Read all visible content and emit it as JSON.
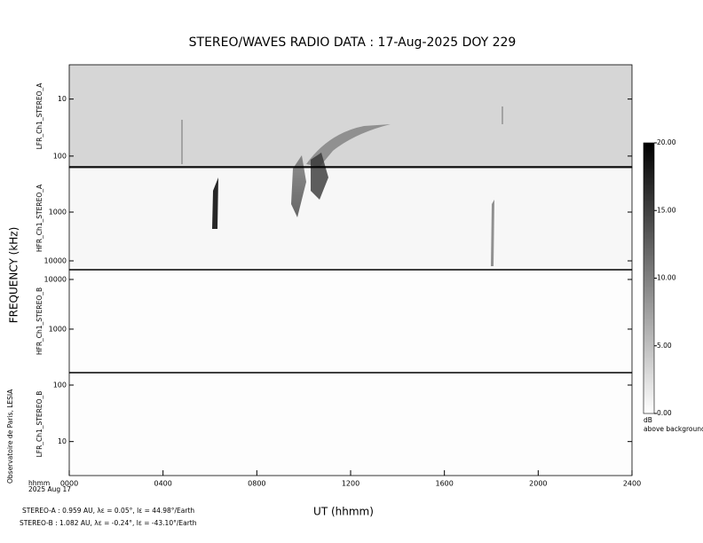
{
  "chart_data": {
    "type": "spectrogram",
    "title": "STEREO/WAVES  RADIO  DATA : 17-Aug-2025  DOY 229",
    "xlabel": "UT (hhmm)",
    "ylabel": "FREQUENCY (kHz)",
    "xlim": [
      0,
      24
    ],
    "xticks": [
      {
        "value": 0,
        "label": "0000"
      },
      {
        "value": 4,
        "label": "0400"
      },
      {
        "value": 8,
        "label": "0800"
      },
      {
        "value": 12,
        "label": "1200"
      },
      {
        "value": 16,
        "label": "1600"
      },
      {
        "value": 20,
        "label": "2000"
      },
      {
        "value": 24,
        "label": "2400"
      }
    ],
    "log_y": true,
    "panels": [
      {
        "name": "LFR_Ch1_STEREO_A",
        "ylim": [
          2.5,
          160
        ],
        "inverted": true,
        "yticks": [
          10,
          100
        ],
        "background": "#d6d6d6"
      },
      {
        "name": "HFR_Ch1_STEREO_A",
        "ylim": [
          118,
          15200
        ],
        "inverted": true,
        "yticks": [
          1000,
          10000
        ],
        "background": "#f7f7f7"
      },
      {
        "name": "HFR_Ch1_STEREO_B",
        "ylim": [
          133,
          15700
        ],
        "inverted": false,
        "yticks": [
          1000,
          10000
        ],
        "background": "#fdfdfd"
      },
      {
        "name": "LFR_Ch1_STEREO_B",
        "ylim": [
          2.5,
          166
        ],
        "inverted": false,
        "yticks": [
          10,
          100
        ],
        "background": "#fdfdfd"
      }
    ],
    "colorbar": {
      "zlim": [
        0,
        20
      ],
      "ticks": [
        {
          "value": 0,
          "label": "0.00"
        },
        {
          "value": 5,
          "label": "5.00"
        },
        {
          "value": 10,
          "label": "10.00"
        },
        {
          "value": 15,
          "label": "15.00"
        },
        {
          "value": 20,
          "label": "20.00"
        }
      ],
      "unit": "dB",
      "unit_note": "above background",
      "colors": [
        "#ffffff",
        "#000000"
      ]
    },
    "footer": {
      "time_unit": "hhmm",
      "date": "2025 Aug 17",
      "credit": "Observatoire de Paris, LESIA",
      "stereo_a": "STEREO-A : 0.959 AU, λε = 0.05°, lε = 44.98°/Earth",
      "stereo_b": "STEREO-B : 1.082 AU, λε = -0.24°, lε = -43.10°/Earth"
    }
  }
}
